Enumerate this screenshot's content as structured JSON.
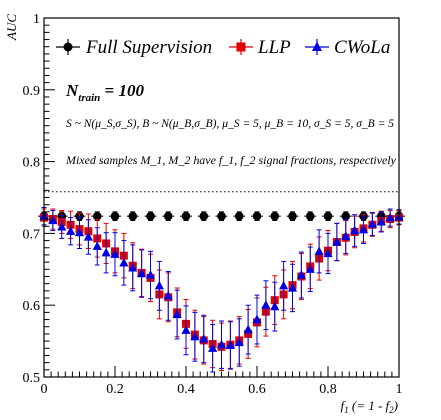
{
  "chart_data": {
    "type": "scatter",
    "title": "",
    "xlabel": "f_1 (= 1 - f_2)",
    "xlabel_parts": {
      "main": "f",
      "sub": "1",
      "rest": " (= 1 - f",
      "sub2": "2",
      "end": ")"
    },
    "ylabel": "AUC",
    "xlim": [
      0,
      1
    ],
    "ylim": [
      0.5,
      1
    ],
    "x_ticks": [
      0,
      0.2,
      0.4,
      0.6,
      0.8,
      1
    ],
    "x_tick_labels": [
      "0",
      "0.2",
      "0.4",
      "0.6",
      "0.8",
      "1"
    ],
    "y_ticks": [
      0.5,
      0.6,
      0.7,
      0.8,
      0.9,
      1
    ],
    "y_tick_labels": [
      "0.5",
      "0.6",
      "0.7",
      "0.8",
      "0.9",
      "1"
    ],
    "grid": false,
    "legend_position": "top",
    "reference_line": {
      "y": 0.758,
      "style": "dotted"
    },
    "annotations": {
      "ntrain_main": "N",
      "ntrain_sub": "train",
      "ntrain_rest": " = 100",
      "distributions": "S ~ N(μ_S,σ_S), B ~ N(μ_B,σ_B), μ_S = 5, μ_B = 10, σ_S = 5, σ_B = 5",
      "mixed": "Mixed samples M_1, M_2 have f_1, f_2 signal fractions, respectively"
    },
    "series": [
      {
        "name": "Full Supervision",
        "color": "#000000",
        "marker": "circle",
        "x": [
          0,
          0.05,
          0.1,
          0.15,
          0.2,
          0.25,
          0.3,
          0.35,
          0.4,
          0.45,
          0.5,
          0.55,
          0.6,
          0.65,
          0.7,
          0.75,
          0.8,
          0.85,
          0.9,
          0.95,
          1.0
        ],
        "y": [
          0.724,
          0.724,
          0.724,
          0.724,
          0.724,
          0.724,
          0.724,
          0.724,
          0.724,
          0.724,
          0.724,
          0.724,
          0.724,
          0.724,
          0.724,
          0.724,
          0.724,
          0.724,
          0.724,
          0.724,
          0.724
        ],
        "err": [
          0.006,
          0.006,
          0.006,
          0.006,
          0.006,
          0.006,
          0.006,
          0.006,
          0.006,
          0.006,
          0.006,
          0.006,
          0.006,
          0.006,
          0.006,
          0.006,
          0.006,
          0.006,
          0.006,
          0.006,
          0.006
        ]
      },
      {
        "name": "LLP",
        "color": "#e00000",
        "marker": "square",
        "x": [
          0,
          0.025,
          0.05,
          0.075,
          0.1,
          0.125,
          0.15,
          0.175,
          0.2,
          0.225,
          0.25,
          0.275,
          0.3,
          0.325,
          0.35,
          0.375,
          0.4,
          0.425,
          0.45,
          0.475,
          0.5,
          0.525,
          0.55,
          0.575,
          0.6,
          0.625,
          0.65,
          0.675,
          0.7,
          0.725,
          0.75,
          0.775,
          0.8,
          0.825,
          0.85,
          0.875,
          0.9,
          0.925,
          0.95,
          0.975,
          1.0
        ],
        "y": [
          0.722,
          0.72,
          0.716,
          0.712,
          0.706,
          0.703,
          0.693,
          0.686,
          0.675,
          0.669,
          0.655,
          0.645,
          0.638,
          0.615,
          0.611,
          0.59,
          0.574,
          0.559,
          0.551,
          0.546,
          0.542,
          0.545,
          0.551,
          0.56,
          0.576,
          0.591,
          0.607,
          0.615,
          0.628,
          0.64,
          0.654,
          0.665,
          0.676,
          0.688,
          0.694,
          0.702,
          0.707,
          0.712,
          0.717,
          0.72,
          0.722
        ],
        "err": [
          0.012,
          0.014,
          0.016,
          0.019,
          0.022,
          0.024,
          0.026,
          0.028,
          0.03,
          0.031,
          0.032,
          0.033,
          0.033,
          0.034,
          0.034,
          0.034,
          0.034,
          0.034,
          0.033,
          0.033,
          0.033,
          0.033,
          0.033,
          0.034,
          0.034,
          0.034,
          0.034,
          0.034,
          0.033,
          0.032,
          0.031,
          0.03,
          0.028,
          0.026,
          0.024,
          0.022,
          0.019,
          0.016,
          0.014,
          0.012,
          0.01
        ]
      },
      {
        "name": "CWoLa",
        "color": "#0000e0",
        "marker": "triangle",
        "x": [
          0,
          0.025,
          0.05,
          0.075,
          0.1,
          0.125,
          0.15,
          0.175,
          0.2,
          0.225,
          0.25,
          0.275,
          0.3,
          0.325,
          0.35,
          0.375,
          0.4,
          0.425,
          0.45,
          0.475,
          0.5,
          0.525,
          0.55,
          0.575,
          0.6,
          0.625,
          0.65,
          0.675,
          0.7,
          0.725,
          0.75,
          0.775,
          0.8,
          0.825,
          0.85,
          0.875,
          0.9,
          0.925,
          0.95,
          0.975,
          1.0
        ],
        "y": [
          0.724,
          0.718,
          0.709,
          0.703,
          0.701,
          0.695,
          0.682,
          0.673,
          0.671,
          0.659,
          0.652,
          0.644,
          0.642,
          0.627,
          0.613,
          0.587,
          0.565,
          0.556,
          0.553,
          0.54,
          0.545,
          0.544,
          0.548,
          0.566,
          0.58,
          0.6,
          0.598,
          0.627,
          0.624,
          0.642,
          0.65,
          0.675,
          0.672,
          0.688,
          0.696,
          0.704,
          0.705,
          0.713,
          0.716,
          0.722,
          0.723
        ],
        "err": [
          0.012,
          0.014,
          0.016,
          0.019,
          0.022,
          0.024,
          0.026,
          0.028,
          0.03,
          0.031,
          0.032,
          0.033,
          0.033,
          0.034,
          0.034,
          0.034,
          0.034,
          0.034,
          0.033,
          0.033,
          0.033,
          0.033,
          0.033,
          0.034,
          0.034,
          0.034,
          0.034,
          0.034,
          0.033,
          0.032,
          0.031,
          0.03,
          0.028,
          0.026,
          0.024,
          0.022,
          0.019,
          0.016,
          0.014,
          0.012,
          0.01
        ]
      }
    ]
  }
}
